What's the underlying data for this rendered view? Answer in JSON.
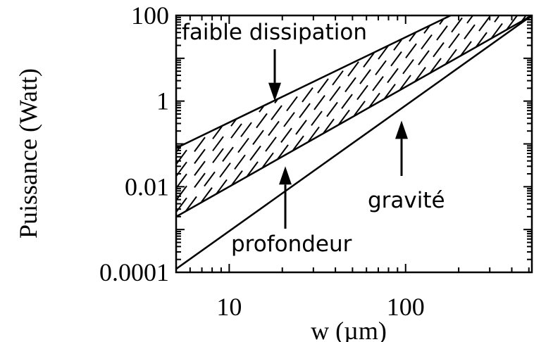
{
  "chart_data": {
    "type": "line",
    "xlabel": "w (µm)",
    "ylabel": "Puissance (Watt)",
    "x_scale": "log",
    "y_scale": "log",
    "xlim": [
      5,
      520
    ],
    "ylim": [
      0.0001,
      100
    ],
    "x_ticks": [
      {
        "value": 10,
        "label": "10"
      },
      {
        "value": 100,
        "label": "100"
      }
    ],
    "y_ticks": [
      {
        "value": 100,
        "label": "100"
      },
      {
        "value": 1,
        "label": "1"
      },
      {
        "value": 0.01,
        "label": "0.01"
      },
      {
        "value": 0.0001,
        "label": "0.0001"
      }
    ],
    "series": [
      {
        "key": "faible-dissipation",
        "x": [
          5,
          180
        ],
        "y": [
          0.08,
          100
        ]
      },
      {
        "key": "profondeur",
        "x": [
          5,
          520
        ],
        "y": [
          0.002,
          100
        ]
      },
      {
        "key": "gravite",
        "x": [
          5,
          520
        ],
        "y": [
          0.00012,
          100
        ]
      }
    ],
    "shaded_region": {
      "between": [
        "faible-dissipation",
        "profondeur"
      ],
      "pattern": "hatched"
    },
    "annotations": [
      {
        "key": "faible-dissipation",
        "text": "faible dissipation",
        "arrow_to": {
          "x": 17.5,
          "y": 1
        }
      },
      {
        "key": "profondeur",
        "text": "profondeur",
        "arrow_to": {
          "x": 20,
          "y": 0.03
        }
      },
      {
        "key": "gravite",
        "text": "gravité",
        "arrow_to": {
          "x": 90,
          "y": 0.35
        }
      }
    ]
  }
}
